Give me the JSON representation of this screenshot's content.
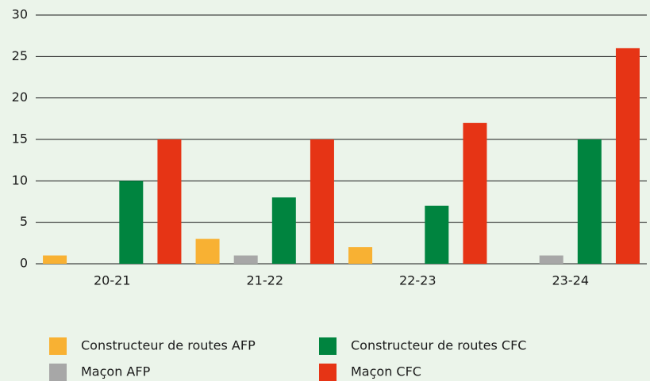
{
  "chart_data": {
    "type": "bar",
    "categories": [
      "20-21",
      "21-22",
      "22-23",
      "23-24"
    ],
    "series": [
      {
        "name": "Constructeur de routes AFP",
        "color": "#f8b133",
        "values": [
          1,
          3,
          2,
          0
        ]
      },
      {
        "name": "Maçon AFP",
        "color": "#a7a7a7",
        "values": [
          0,
          1,
          0,
          1
        ]
      },
      {
        "name": "Constructeur de routes CFC",
        "color": "#00843f",
        "values": [
          10,
          8,
          7,
          15
        ]
      },
      {
        "name": "Maçon CFC",
        "color": "#e63415",
        "values": [
          15,
          15,
          17,
          26
        ]
      }
    ],
    "ylim": [
      0,
      30
    ],
    "yticks": [
      0,
      5,
      10,
      15,
      20,
      25,
      30
    ],
    "grid": true
  }
}
